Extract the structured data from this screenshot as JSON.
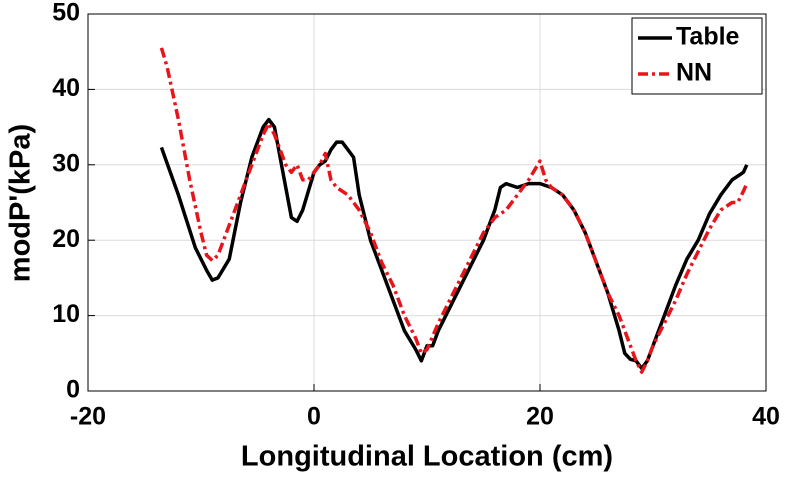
{
  "chart_data": {
    "type": "line",
    "xlabel": "Longitudinal Location (cm)",
    "ylabel": "modP'(kPa)",
    "xlim": [
      -20,
      40
    ],
    "xticks": [
      -20,
      0,
      20,
      40
    ],
    "ylim": [
      0,
      50
    ],
    "yticks": [
      0,
      10,
      20,
      30,
      40,
      50
    ],
    "grid": true,
    "legend": "top-right",
    "series": [
      {
        "name": "Table",
        "color": "#000000",
        "dash": "solid",
        "x": [
          -13.5,
          -12,
          -10.5,
          -9.5,
          -9,
          -8.5,
          -7.5,
          -6.5,
          -5.5,
          -4.5,
          -4,
          -3.5,
          -3,
          -2.5,
          -2,
          -1.5,
          -1,
          0,
          0.5,
          1,
          1.5,
          2,
          2.5,
          3,
          3.5,
          4,
          5,
          6,
          7,
          8,
          9,
          9.5,
          10,
          10.5,
          11,
          12,
          13,
          14,
          15,
          16,
          16.5,
          17,
          18,
          19,
          20,
          21,
          22,
          23,
          24,
          25,
          26,
          27,
          27.5,
          28,
          28.5,
          29,
          29.5,
          30,
          31,
          32,
          33,
          34,
          35,
          36,
          37,
          37.5,
          38,
          38.3
        ],
        "values": [
          32.3,
          26,
          19,
          16,
          14.7,
          15,
          17.5,
          25,
          31,
          35,
          36,
          35,
          31,
          27,
          23,
          22.5,
          24,
          29,
          30,
          30.5,
          32,
          33,
          33,
          32,
          31,
          26,
          20,
          16,
          12,
          8,
          5.5,
          4,
          6,
          6,
          8,
          11,
          14,
          17,
          20,
          24,
          27,
          27.5,
          27,
          27.5,
          27.5,
          27,
          26,
          24,
          21,
          17,
          13,
          8,
          5,
          4.2,
          4,
          3,
          4,
          6,
          10,
          14,
          17.5,
          20,
          23.5,
          26,
          28,
          28.5,
          29,
          30
        ]
      },
      {
        "name": "NN",
        "color": "#e8141b",
        "dash": "dashdot",
        "x": [
          -13.5,
          -13,
          -12,
          -11,
          -10,
          -9.5,
          -9,
          -8.5,
          -7.5,
          -6.5,
          -5.5,
          -4.5,
          -4,
          -3.5,
          -3,
          -2.5,
          -2,
          -1.5,
          -1,
          -0.5,
          0,
          0.5,
          1,
          1.5,
          2,
          3,
          4,
          5,
          6,
          7,
          8,
          9,
          9.5,
          10,
          11,
          12,
          13,
          14,
          15,
          16,
          17,
          18,
          19,
          20,
          20.5,
          21,
          22,
          23,
          24,
          25,
          26,
          27,
          28,
          28.5,
          29,
          29.5,
          30,
          31,
          32,
          33,
          34,
          35,
          36,
          37,
          37.5,
          38,
          38.3
        ],
        "values": [
          45.5,
          43,
          36,
          28,
          21,
          18,
          17.3,
          18,
          22,
          26,
          30,
          34,
          35.5,
          34,
          32,
          30,
          29,
          30,
          28,
          28,
          29,
          30,
          31.5,
          28,
          27,
          26,
          24,
          21,
          17,
          14,
          10,
          7,
          5,
          5.5,
          9,
          12,
          15,
          18,
          21,
          23,
          24,
          26,
          28,
          30.5,
          28,
          27,
          26,
          24,
          21,
          17,
          13,
          10,
          6,
          4,
          2.5,
          4,
          6,
          9,
          12,
          15.5,
          18.5,
          21.5,
          24,
          25,
          25,
          26.5,
          27.5
        ]
      }
    ]
  }
}
